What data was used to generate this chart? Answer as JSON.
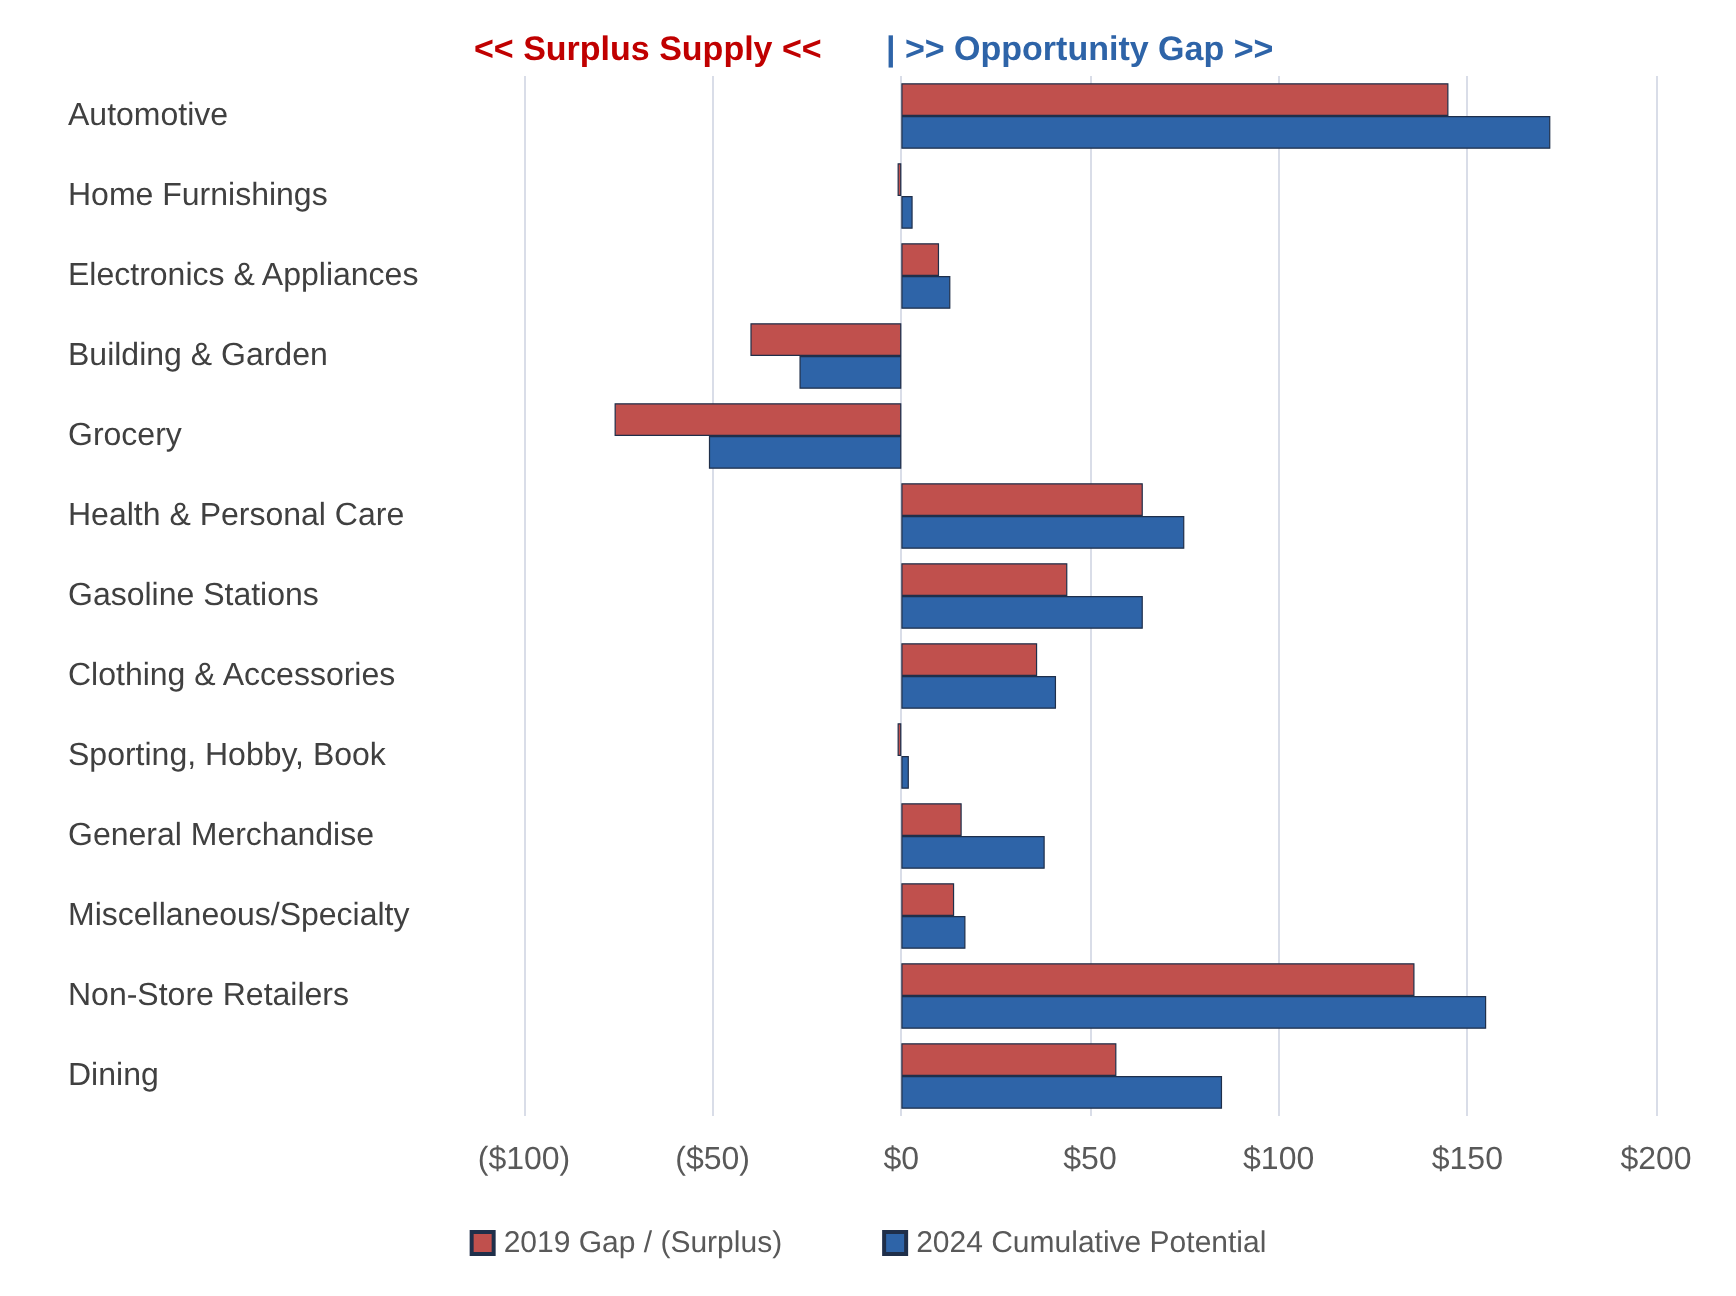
{
  "chart_data": {
    "type": "bar",
    "orientation": "horizontal",
    "annotations": [
      "<< Surplus Supply <<",
      "| >> Opportunity Gap >>"
    ],
    "categories": [
      "Automotive",
      "Home Furnishings",
      "Electronics & Appliances",
      "Building & Garden",
      "Grocery",
      "Health & Personal Care",
      "Gasoline Stations",
      "Clothing & Accessories",
      "Sporting, Hobby, Book",
      "General Merchandise",
      "Miscellaneous/Specialty",
      "Non-Store Retailers",
      "Dining"
    ],
    "series": [
      {
        "name": "2019 Gap / (Surplus)",
        "color": "#c0504d",
        "values": [
          145,
          -1,
          10,
          -40,
          -76,
          64,
          44,
          36,
          -1,
          16,
          14,
          136,
          57
        ]
      },
      {
        "name": "2024 Cumulative Potential",
        "color": "#2e64a8",
        "values": [
          172,
          3,
          13,
          -27,
          -51,
          75,
          64,
          41,
          2,
          38,
          17,
          155,
          85
        ]
      }
    ],
    "xlim": [
      -100,
      200
    ],
    "xticks": [
      {
        "value": -100,
        "label": "($100)"
      },
      {
        "value": -50,
        "label": "($50)"
      },
      {
        "value": 0,
        "label": "$0"
      },
      {
        "value": 50,
        "label": "$50"
      },
      {
        "value": 100,
        "label": "$100"
      },
      {
        "value": 150,
        "label": "$150"
      },
      {
        "value": 200,
        "label": "$200"
      }
    ],
    "grid": "x",
    "legend": "bottom"
  }
}
